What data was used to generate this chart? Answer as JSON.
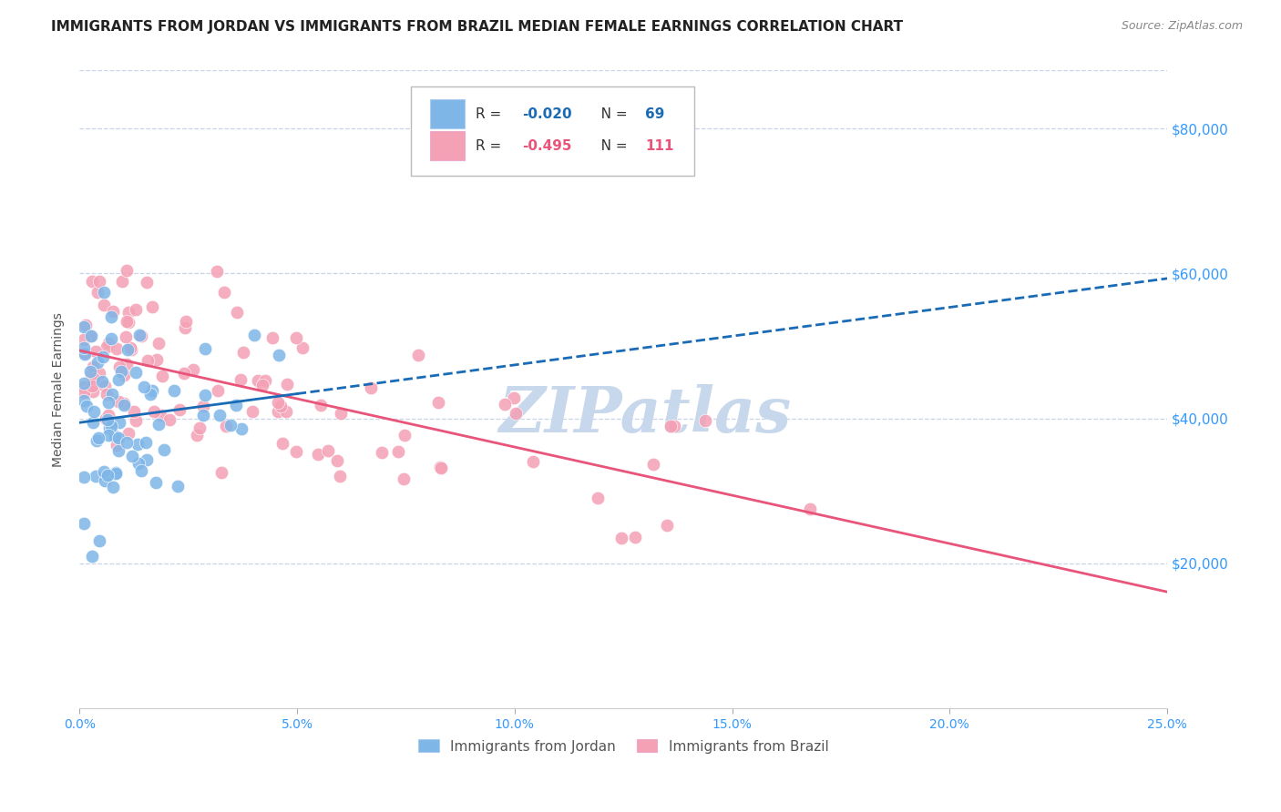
{
  "title": "IMMIGRANTS FROM JORDAN VS IMMIGRANTS FROM BRAZIL MEDIAN FEMALE EARNINGS CORRELATION CHART",
  "source": "Source: ZipAtlas.com",
  "ylabel": "Median Female Earnings",
  "yticks": [
    0,
    20000,
    40000,
    60000,
    80000
  ],
  "ytick_labels": [
    "",
    "$20,000",
    "$40,000",
    "$60,000",
    "$80,000"
  ],
  "xmin": 0.0,
  "xmax": 0.25,
  "ymin": 0,
  "ymax": 88000,
  "jordan_R": -0.02,
  "jordan_N": 69,
  "brazil_R": -0.495,
  "brazil_N": 111,
  "jordan_color": "#7eb6e8",
  "brazil_color": "#f4a0b5",
  "jordan_line_color": "#1a6bb5",
  "brazil_line_color": "#e8547a",
  "background_color": "#ffffff",
  "grid_color": "#c8d4e8",
  "watermark": "ZIPatlas",
  "watermark_color": "#c8d8ec",
  "title_fontsize": 11,
  "tick_label_color": "#3399ff",
  "xtick_positions": [
    0.0,
    0.05,
    0.1,
    0.15,
    0.2,
    0.25
  ],
  "xtick_labels": [
    "0.0%",
    "5.0%",
    "10.0%",
    "15.0%",
    "20.0%",
    "25.0%"
  ]
}
